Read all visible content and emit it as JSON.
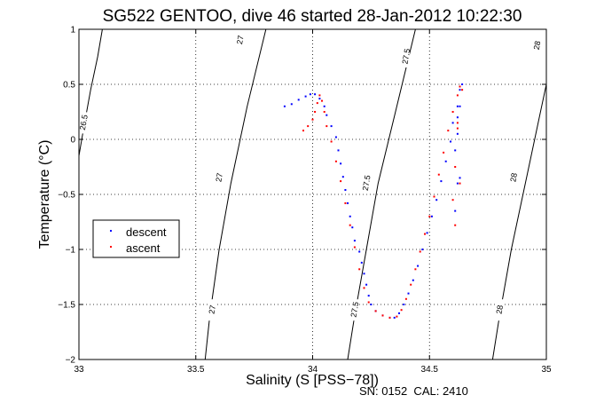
{
  "chart_data": {
    "type": "scatter",
    "title": "SG522 GENTOO, dive 46 started 28-Jan-2012 10:22:30",
    "xlabel": "Salinity (S [PSS−78])",
    "ylabel": "Temperature (°C)",
    "xlim": [
      33,
      35
    ],
    "ylim": [
      -2,
      1
    ],
    "x_ticks": [
      33,
      33.5,
      34,
      34.5,
      35
    ],
    "x_tick_labels": [
      "33",
      "33.5",
      "34",
      "34.5",
      "35"
    ],
    "y_ticks": [
      -2,
      -1.5,
      -1,
      -0.5,
      0,
      0.5,
      1
    ],
    "y_tick_labels": [
      "−2",
      "−1.5",
      "−1",
      "−0.5",
      "0",
      "0.5",
      "1"
    ],
    "grid": true,
    "legend_position": "middle-left",
    "footnote": "SN: 0152  CAL: 2410",
    "colors": {
      "descent": "#0000ff",
      "ascent": "#ff0000",
      "contour": "#000000"
    },
    "contours": [
      {
        "label": "26.5",
        "points": [
          [
            33.0,
            -0.15
          ],
          [
            33.02,
            0.1
          ],
          [
            33.05,
            0.45
          ],
          [
            33.08,
            0.75
          ],
          [
            33.1,
            1.0
          ]
        ],
        "label_positions": [
          [
            33.02,
            0.15
          ]
        ]
      },
      {
        "label": "27",
        "points": [
          [
            33.54,
            -2.0
          ],
          [
            33.56,
            -1.6
          ],
          [
            33.6,
            -1.0
          ],
          [
            33.65,
            -0.4
          ],
          [
            33.72,
            0.3
          ],
          [
            33.8,
            1.0
          ]
        ],
        "label_positions": [
          [
            33.57,
            -1.55
          ],
          [
            33.6,
            -0.35
          ],
          [
            33.69,
            0.9
          ]
        ]
      },
      {
        "label": "27.5",
        "points": [
          [
            34.15,
            -2.0
          ],
          [
            34.18,
            -1.6
          ],
          [
            34.23,
            -1.0
          ],
          [
            34.28,
            -0.4
          ],
          [
            34.36,
            0.3
          ],
          [
            34.44,
            1.0
          ]
        ],
        "label_positions": [
          [
            34.18,
            -1.55
          ],
          [
            34.23,
            -0.4
          ],
          [
            34.4,
            0.75
          ]
        ]
      },
      {
        "label": "28",
        "points": [
          [
            34.77,
            -2.0
          ],
          [
            34.8,
            -1.6
          ],
          [
            34.85,
            -1.0
          ],
          [
            34.91,
            -0.4
          ],
          [
            34.98,
            0.3
          ],
          [
            35.0,
            0.5
          ]
        ],
        "label_positions": [
          [
            34.8,
            -1.55
          ],
          [
            34.86,
            -0.35
          ],
          [
            34.96,
            0.85
          ]
        ]
      }
    ],
    "series": [
      {
        "name": "descent",
        "points": [
          [
            33.88,
            0.3
          ],
          [
            33.91,
            0.32
          ],
          [
            33.94,
            0.36
          ],
          [
            33.97,
            0.39
          ],
          [
            33.99,
            0.41
          ],
          [
            34.01,
            0.41
          ],
          [
            34.03,
            0.37
          ],
          [
            34.05,
            0.3
          ],
          [
            34.06,
            0.22
          ],
          [
            34.08,
            0.12
          ],
          [
            34.1,
            0.02
          ],
          [
            34.11,
            -0.1
          ],
          [
            34.12,
            -0.22
          ],
          [
            34.13,
            -0.34
          ],
          [
            34.14,
            -0.46
          ],
          [
            34.15,
            -0.58
          ],
          [
            34.16,
            -0.7
          ],
          [
            34.17,
            -0.8
          ],
          [
            34.18,
            -0.92
          ],
          [
            34.2,
            -1.02
          ],
          [
            34.21,
            -1.12
          ],
          [
            34.22,
            -1.22
          ],
          [
            34.23,
            -1.32
          ],
          [
            34.24,
            -1.42
          ],
          [
            34.25,
            -1.5
          ],
          [
            34.27,
            -1.56
          ],
          [
            34.3,
            -1.6
          ],
          [
            34.33,
            -1.62
          ],
          [
            34.35,
            -1.62
          ],
          [
            34.37,
            -1.58
          ],
          [
            34.39,
            -1.5
          ],
          [
            34.41,
            -1.4
          ],
          [
            34.43,
            -1.28
          ],
          [
            34.45,
            -1.15
          ],
          [
            34.47,
            -1.0
          ],
          [
            34.49,
            -0.85
          ],
          [
            34.51,
            -0.7
          ],
          [
            34.53,
            -0.55
          ],
          [
            34.55,
            -0.38
          ],
          [
            34.57,
            -0.2
          ],
          [
            34.59,
            -0.02
          ],
          [
            34.6,
            0.15
          ],
          [
            34.62,
            0.3
          ],
          [
            34.63,
            0.45
          ],
          [
            34.64,
            0.5
          ],
          [
            34.62,
            0.2
          ],
          [
            34.61,
            -0.1
          ],
          [
            34.62,
            -0.4
          ],
          [
            34.61,
            -0.65
          ],
          [
            34.63,
            -0.35
          ],
          [
            34.62,
            0.05
          ],
          [
            34.63,
            0.3
          ]
        ]
      },
      {
        "name": "ascent",
        "points": [
          [
            33.96,
            0.08
          ],
          [
            33.98,
            0.12
          ],
          [
            34.0,
            0.18
          ],
          [
            34.01,
            0.25
          ],
          [
            34.02,
            0.33
          ],
          [
            34.03,
            0.4
          ],
          [
            34.04,
            0.35
          ],
          [
            34.05,
            0.25
          ],
          [
            34.06,
            0.12
          ],
          [
            34.08,
            -0.02
          ],
          [
            34.1,
            -0.2
          ],
          [
            34.12,
            -0.38
          ],
          [
            34.14,
            -0.58
          ],
          [
            34.16,
            -0.78
          ],
          [
            34.18,
            -0.98
          ],
          [
            34.2,
            -1.18
          ],
          [
            34.22,
            -1.35
          ],
          [
            34.24,
            -1.48
          ],
          [
            34.27,
            -1.56
          ],
          [
            34.3,
            -1.6
          ],
          [
            34.33,
            -1.62
          ],
          [
            34.36,
            -1.61
          ],
          [
            34.38,
            -1.55
          ],
          [
            34.4,
            -1.45
          ],
          [
            34.42,
            -1.32
          ],
          [
            34.44,
            -1.18
          ],
          [
            34.46,
            -1.02
          ],
          [
            34.48,
            -0.86
          ],
          [
            34.5,
            -0.7
          ],
          [
            34.52,
            -0.52
          ],
          [
            34.54,
            -0.32
          ],
          [
            34.56,
            -0.12
          ],
          [
            34.58,
            0.08
          ],
          [
            34.6,
            0.25
          ],
          [
            34.62,
            0.4
          ],
          [
            34.63,
            0.48
          ],
          [
            34.64,
            0.45
          ],
          [
            34.62,
            0.15
          ],
          [
            34.61,
            -0.25
          ],
          [
            34.6,
            -0.55
          ],
          [
            34.61,
            -0.78
          ],
          [
            34.63,
            -0.4
          ],
          [
            34.62,
            0.1
          ]
        ]
      }
    ]
  }
}
